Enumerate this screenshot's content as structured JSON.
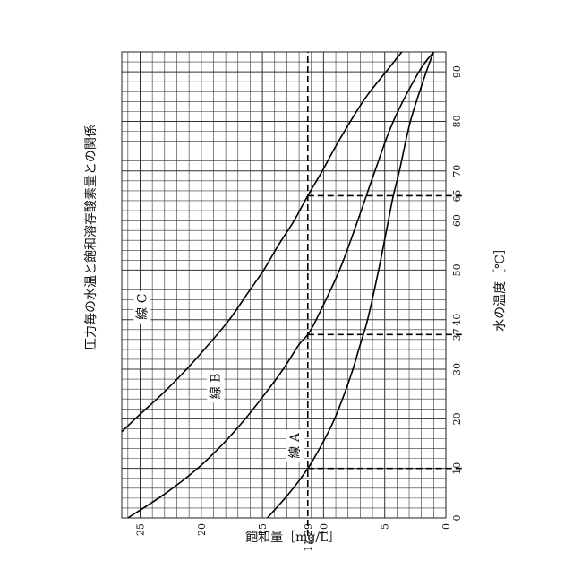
{
  "chart_data": {
    "type": "line",
    "title": "圧力毎の水温と飽和溶存酸素量との関係",
    "xlabel": "水の温度［℃］",
    "ylabel": "飽和量［mg/L］",
    "xlim": [
      0,
      94
    ],
    "ylim": [
      0,
      26.5
    ],
    "x_ticks": [
      0,
      10,
      20,
      30,
      37,
      40,
      50,
      60,
      65,
      70,
      80,
      90
    ],
    "y_ticks": [
      0,
      5,
      10,
      11.29,
      15,
      20,
      25
    ],
    "x_tick_labels": [
      "0",
      "10",
      "20",
      "30",
      "37",
      "40",
      "50",
      "60",
      "65",
      "70",
      "80",
      "90"
    ],
    "y_tick_labels": [
      "0",
      "5",
      "10",
      "11.29",
      "15",
      "20",
      "25"
    ],
    "grid": true,
    "series": [
      {
        "name": "線 A",
        "label_pos": [
          12,
          12
        ],
        "points": [
          [
            0,
            14.6
          ],
          [
            5,
            12.8
          ],
          [
            10,
            11.29
          ],
          [
            15,
            10.1
          ],
          [
            20,
            9.1
          ],
          [
            25,
            8.3
          ],
          [
            30,
            7.6
          ],
          [
            35,
            7.0
          ],
          [
            40,
            6.4
          ],
          [
            50,
            5.5
          ],
          [
            60,
            4.7
          ],
          [
            65,
            4.3
          ],
          [
            70,
            3.8
          ],
          [
            80,
            2.9
          ],
          [
            90,
            1.6
          ],
          [
            94,
            1.0
          ]
        ]
      },
      {
        "name": "線 B",
        "label_pos": [
          24,
          18.5
        ],
        "points": [
          [
            0,
            26.0
          ],
          [
            5,
            22.9
          ],
          [
            10,
            20.3
          ],
          [
            15,
            18.2
          ],
          [
            20,
            16.4
          ],
          [
            25,
            14.8
          ],
          [
            30,
            13.3
          ],
          [
            35,
            12.0
          ],
          [
            37,
            11.29
          ],
          [
            40,
            10.6
          ],
          [
            50,
            8.7
          ],
          [
            60,
            7.2
          ],
          [
            70,
            5.8
          ],
          [
            80,
            4.3
          ],
          [
            90,
            2.2
          ],
          [
            94,
            1.0
          ]
        ]
      },
      {
        "name": "線 C",
        "label_pos": [
          40,
          24.5
        ],
        "points": [
          [
            15,
            27.5
          ],
          [
            20,
            25.4
          ],
          [
            25,
            23.2
          ],
          [
            30,
            21.2
          ],
          [
            35,
            19.4
          ],
          [
            40,
            17.7
          ],
          [
            45,
            16.3
          ],
          [
            50,
            14.9
          ],
          [
            55,
            13.7
          ],
          [
            60,
            12.4
          ],
          [
            65,
            11.29
          ],
          [
            70,
            10.1
          ],
          [
            75,
            9.0
          ],
          [
            80,
            7.8
          ],
          [
            85,
            6.5
          ],
          [
            90,
            4.9
          ],
          [
            94,
            3.6
          ]
        ]
      }
    ],
    "reference_lines": {
      "horizontal": [
        11.29
      ],
      "vertical": [
        {
          "x": 10,
          "y_at": 11.29
        },
        {
          "x": 37,
          "y_at": 11.29
        },
        {
          "x": 65,
          "y_at": 11.29
        }
      ]
    }
  }
}
